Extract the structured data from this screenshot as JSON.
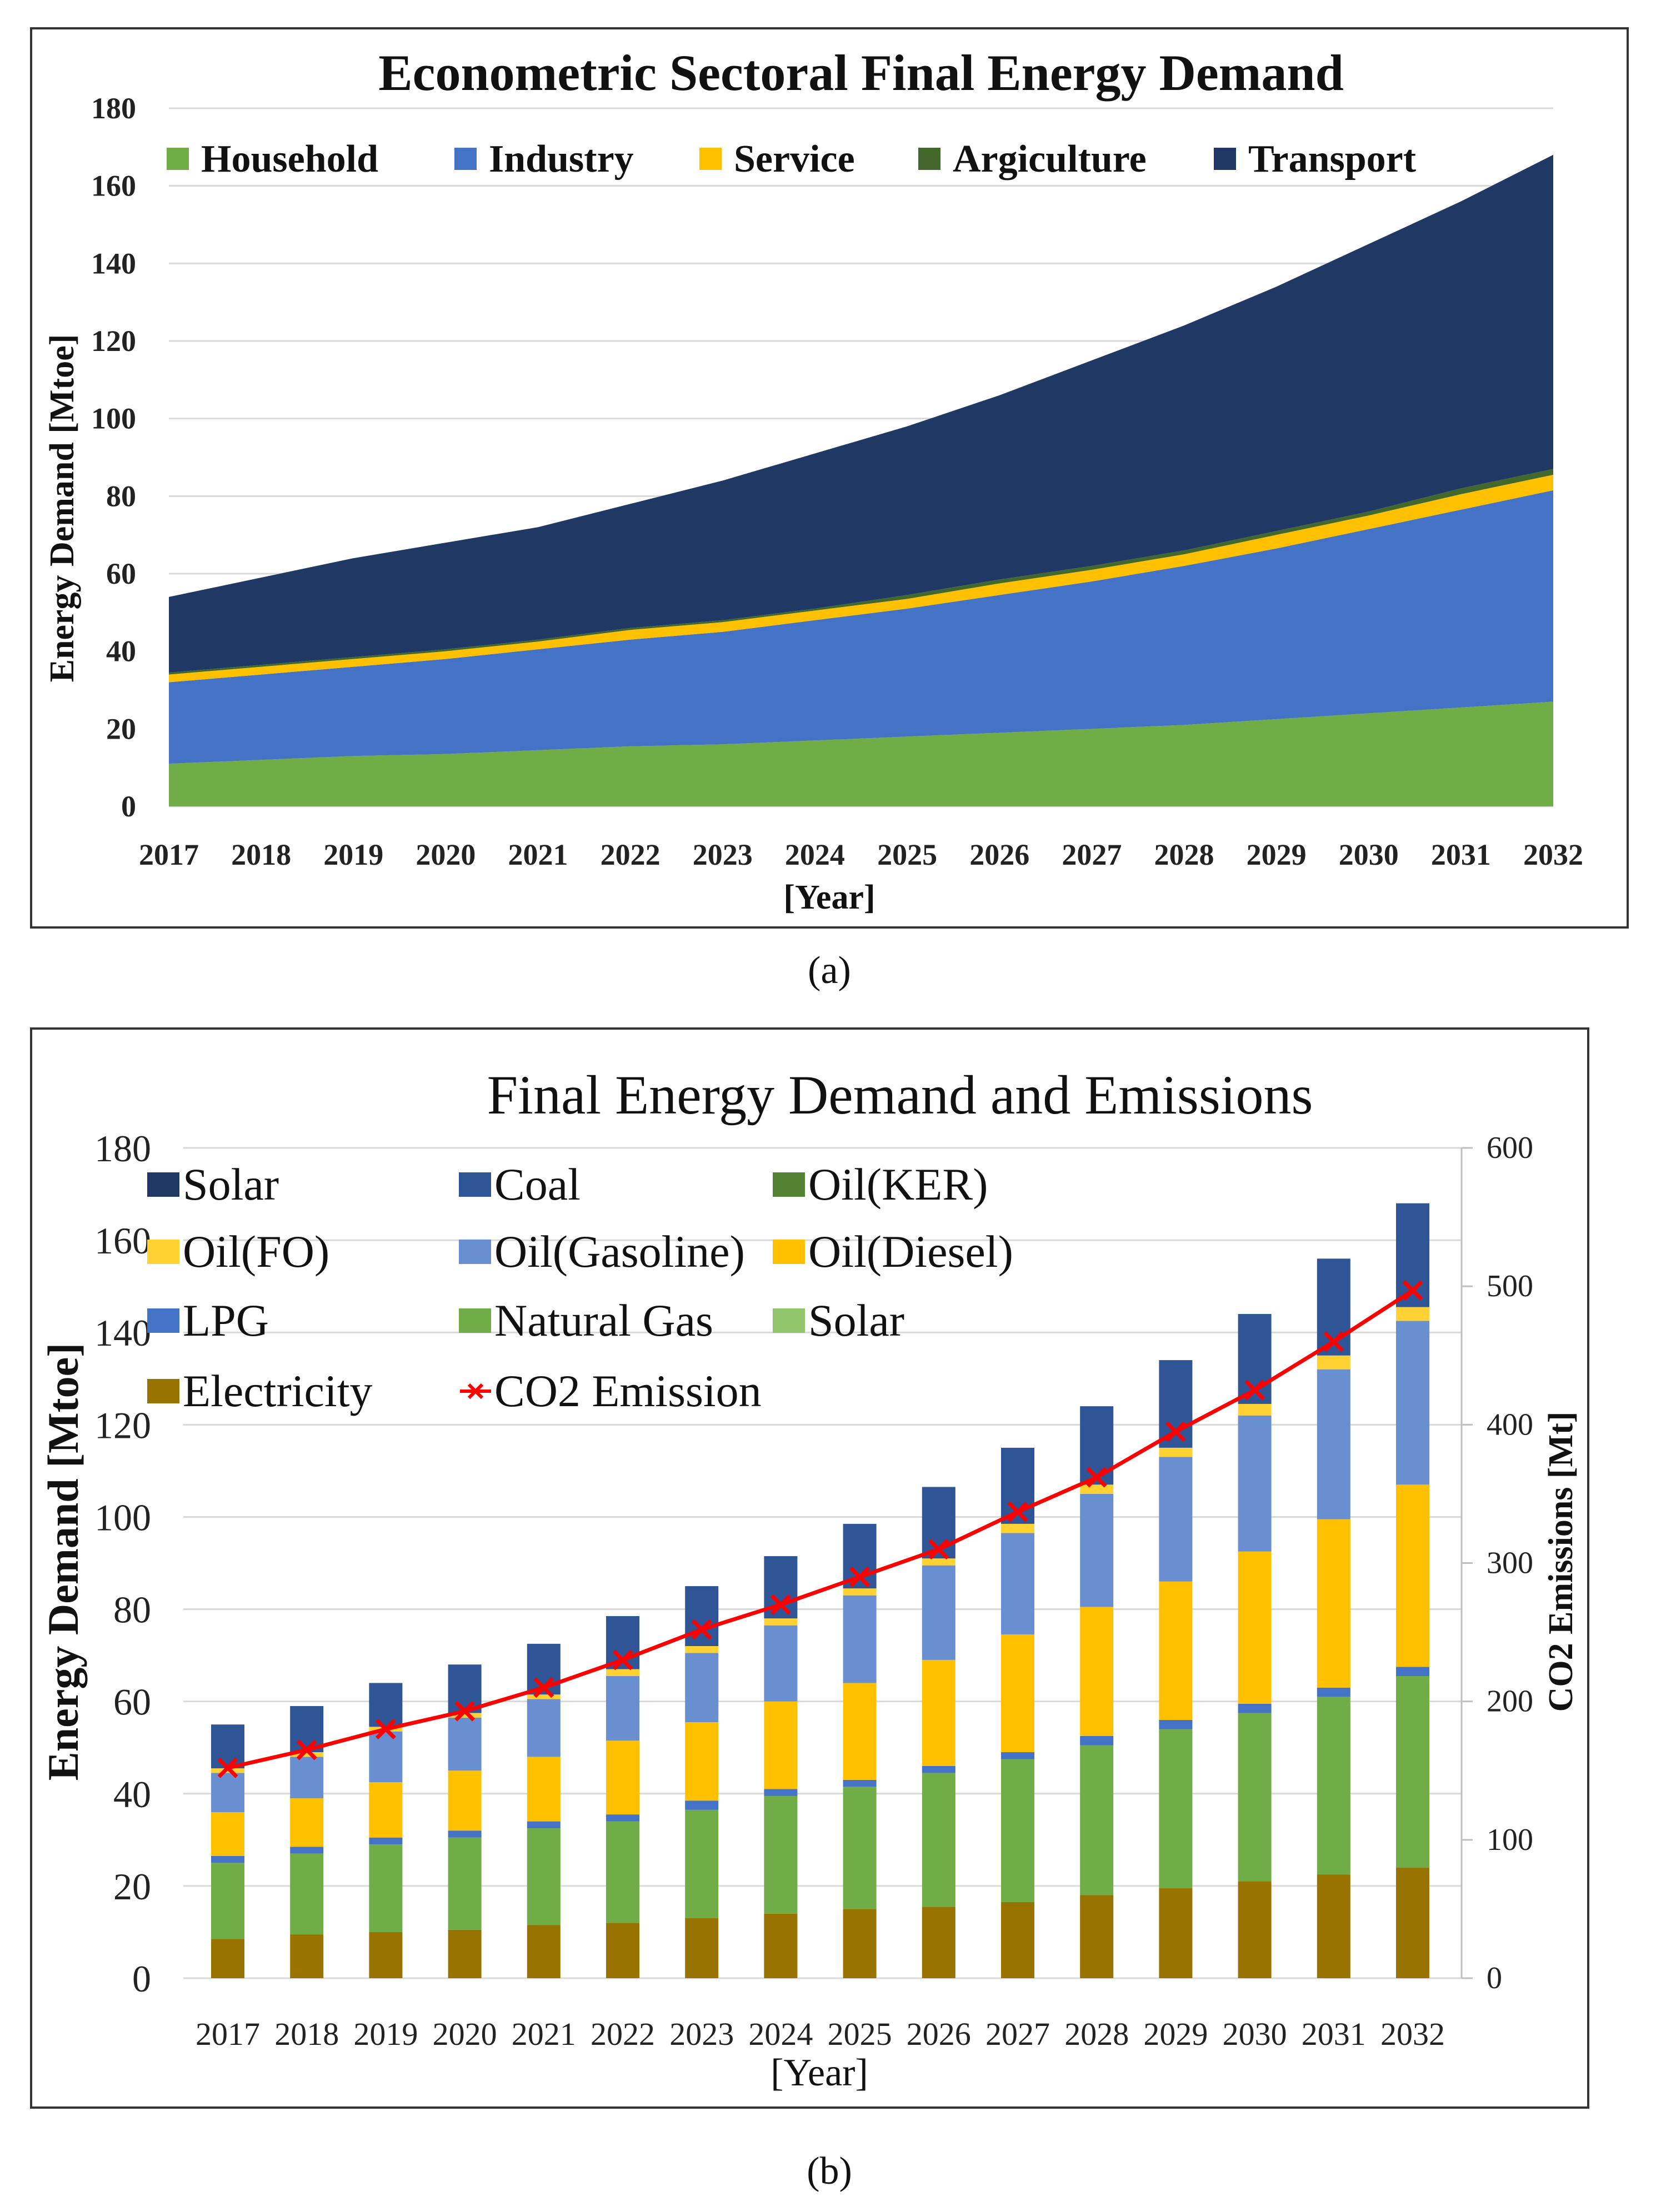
{
  "chart_data": [
    {
      "type": "area",
      "panel": "(a)",
      "title": "Econometric Sectoral Final Energy Demand",
      "xlabel": "[Year]",
      "ylabel": "Energy Demand [Mtoe]",
      "ylim": [
        0,
        180
      ],
      "yticks": [
        0,
        20,
        40,
        60,
        80,
        100,
        120,
        140,
        160,
        180
      ],
      "stacked": true,
      "legend_position": "top",
      "categories": [
        "2017",
        "2018",
        "2019",
        "2020",
        "2021",
        "2022",
        "2023",
        "2024",
        "2025",
        "2026",
        "2027",
        "2028",
        "2029",
        "2030",
        "2031",
        "2032"
      ],
      "series": [
        {
          "name": "Household",
          "color": "#70ad47",
          "values": [
            11,
            12,
            13,
            13.5,
            14.5,
            15.5,
            16,
            17,
            18,
            19,
            20,
            21,
            22.5,
            24,
            25.5,
            27
          ]
        },
        {
          "name": "Industry",
          "color": "#4472c4",
          "values": [
            21,
            22,
            23,
            24.5,
            26,
            27.5,
            29,
            31,
            33,
            35.5,
            38,
            41,
            44,
            47.5,
            51,
            54.5
          ]
        },
        {
          "name": "Service",
          "color": "#ffc000",
          "values": [
            2,
            2,
            2,
            2,
            2,
            2.5,
            2.5,
            2.5,
            2.5,
            3,
            3,
            3,
            3.5,
            3.5,
            4,
            4
          ]
        },
        {
          "name": "Argiculture",
          "color": "#43682b",
          "values": [
            0.5,
            0.5,
            0.5,
            0.5,
            0.5,
            0.5,
            0.5,
            0.5,
            1,
            1,
            1,
            1,
            1,
            1,
            1.5,
            1.5
          ]
        },
        {
          "name": "Transport",
          "color": "#203864",
          "values": [
            19.5,
            22.5,
            25.5,
            27.5,
            29,
            32,
            36,
            40,
            43.5,
            47.5,
            53,
            58,
            63,
            69,
            74,
            81
          ]
        }
      ]
    },
    {
      "type": "bar",
      "panel": "(b)",
      "title": "Final Energy Demand and Emissions",
      "xlabel": "[Year]",
      "ylabel": "Energy Demand [Mtoe]",
      "ylabel_right": "CO2 Emissions [Mt]",
      "ylim": [
        0,
        180
      ],
      "ylim_right": [
        0,
        600
      ],
      "yticks": [
        0,
        20,
        40,
        60,
        80,
        100,
        120,
        140,
        160,
        180
      ],
      "yticks_right": [
        0,
        100,
        200,
        300,
        400,
        500,
        600
      ],
      "stacked": true,
      "grid": true,
      "legend_position": "top-left",
      "categories": [
        "2017",
        "2018",
        "2019",
        "2020",
        "2021",
        "2022",
        "2023",
        "2024",
        "2025",
        "2026",
        "2027",
        "2028",
        "2029",
        "2030",
        "2031",
        "2032"
      ],
      "legend": [
        {
          "name": "Solar",
          "color": "#203864",
          "kind": "box"
        },
        {
          "name": "Coal",
          "color": "#2f5597",
          "kind": "box"
        },
        {
          "name": "Oil(KER)",
          "color": "#548235",
          "kind": "box"
        },
        {
          "name": "Oil(FO)",
          "color": "#ffd133",
          "kind": "box"
        },
        {
          "name": "Oil(Gasoline)",
          "color": "#6a8fd0",
          "kind": "box"
        },
        {
          "name": "Oil(Diesel)",
          "color": "#ffc000",
          "kind": "box"
        },
        {
          "name": "LPG",
          "color": "#4472c4",
          "kind": "box"
        },
        {
          "name": "Natural Gas",
          "color": "#70ad47",
          "kind": "box"
        },
        {
          "name": "Solar",
          "color": "#8fc46a",
          "kind": "box"
        },
        {
          "name": "Electricity",
          "color": "#997300",
          "kind": "box"
        },
        {
          "name": "CO2 Emission",
          "color": "#ff0000",
          "kind": "line"
        }
      ],
      "series": [
        {
          "name": "Electricity",
          "color": "#997300",
          "values": [
            8.5,
            9.5,
            10,
            10.5,
            11.5,
            12,
            13,
            14,
            15,
            15.5,
            16.5,
            18,
            19.5,
            21,
            22.5,
            24
          ]
        },
        {
          "name": "Natural Gas",
          "color": "#70ad47",
          "values": [
            16.5,
            17.5,
            19,
            20,
            21,
            22,
            23.5,
            25.5,
            26.5,
            29,
            31,
            32.5,
            34.5,
            36.5,
            38.5,
            41.5
          ]
        },
        {
          "name": "LPG",
          "color": "#4472c4",
          "values": [
            1.5,
            1.5,
            1.5,
            1.5,
            1.5,
            1.5,
            2,
            1.5,
            1.5,
            1.5,
            1.5,
            2,
            2,
            2,
            2,
            2
          ]
        },
        {
          "name": "Oil(Diesel)",
          "color": "#ffc000",
          "values": [
            9.5,
            10.5,
            12,
            13,
            14,
            16,
            17,
            19,
            21,
            23,
            25.5,
            28,
            30,
            33,
            36.5,
            39.5
          ]
        },
        {
          "name": "Oil(Gasoline)",
          "color": "#6a8fd0",
          "values": [
            8.5,
            9,
            11,
            11.5,
            12.5,
            14,
            15,
            16.5,
            19,
            20.5,
            22,
            24.5,
            27,
            29.5,
            32.5,
            35.5
          ]
        },
        {
          "name": "Oil(FO)",
          "color": "#ffd133",
          "values": [
            1,
            1,
            1,
            1,
            1,
            1.5,
            1.5,
            1.5,
            1.5,
            1.5,
            2,
            2,
            2,
            2.5,
            3,
            3
          ]
        },
        {
          "name": "Coal",
          "color": "#2f5597",
          "values": [
            9.5,
            10,
            9.5,
            10.5,
            11,
            11.5,
            13,
            13.5,
            14,
            15.5,
            16.5,
            17,
            19,
            19.5,
            21,
            22.5
          ]
        }
      ],
      "line_series": {
        "name": "CO2 Emission",
        "axis": "right",
        "color": "#ff0000",
        "values": [
          152,
          165,
          180,
          193,
          210,
          230,
          252,
          270,
          290,
          310,
          337,
          362,
          395,
          425,
          460,
          497
        ]
      }
    }
  ]
}
